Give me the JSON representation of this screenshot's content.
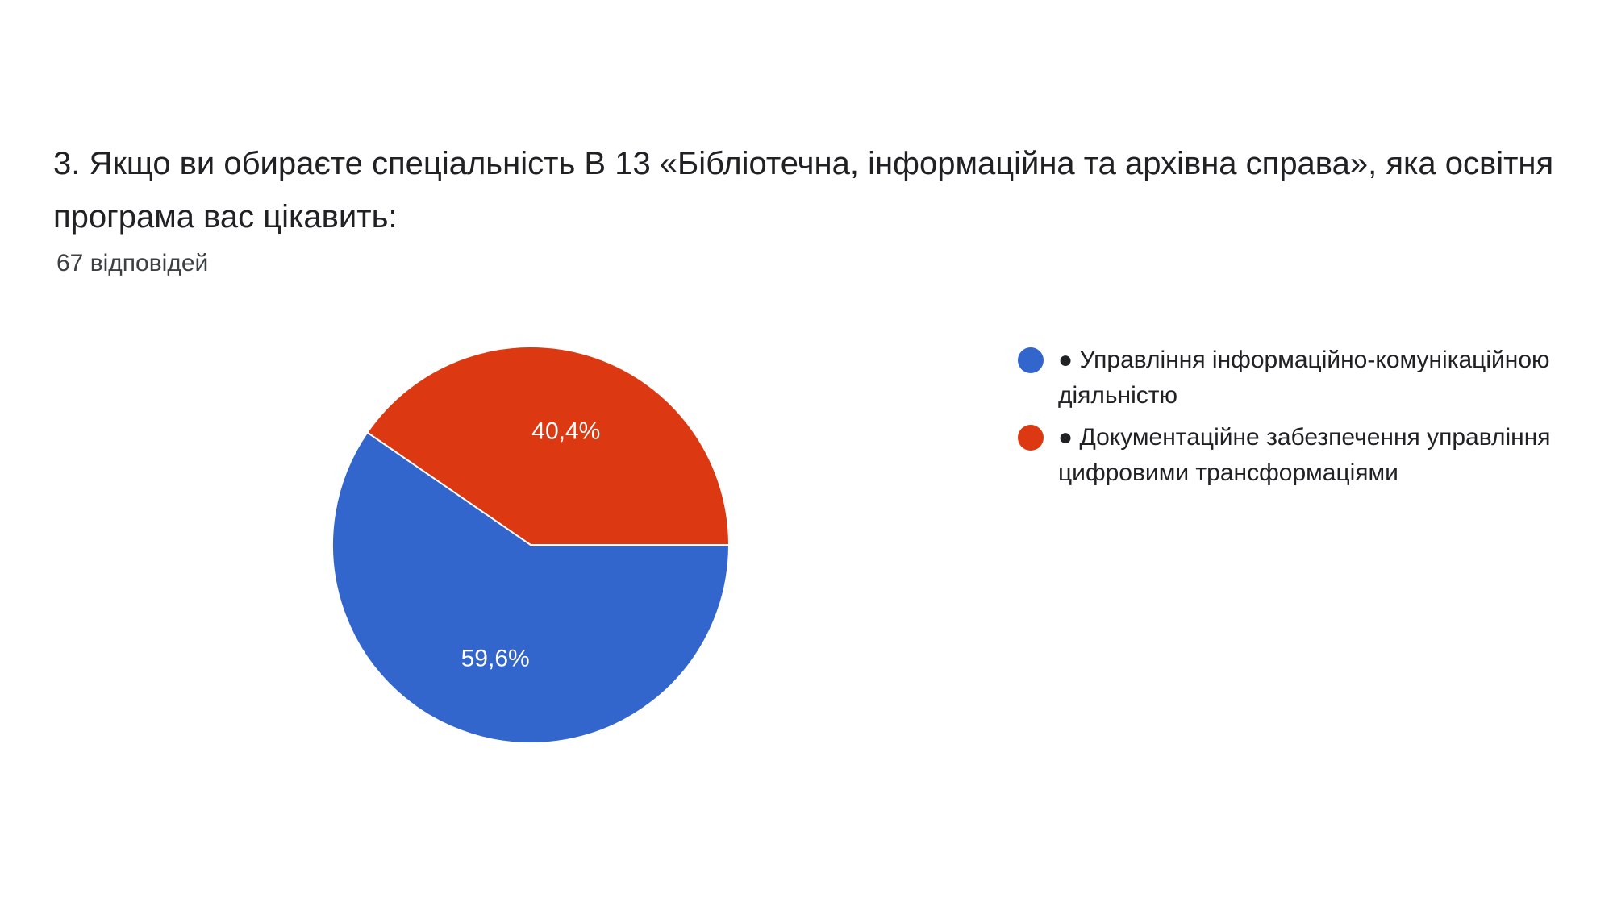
{
  "question": {
    "title": "3. Якщо ви обираєте спеціальність В 13 «Бібліотечна, інформаційна та архівна справа», яка освітня програма вас цікавить:",
    "response_count": "67 відповідей"
  },
  "colors": {
    "series_1": "#3366CC",
    "series_2": "#DC3912",
    "background": "#FFFFFF"
  },
  "chart_data": {
    "type": "pie",
    "title": "3. Якщо ви обираєте спеціальність В 13 «Бібліотечна, інформаційна та архівна справа», яка освітня програма вас цікавить:",
    "slices": [
      {
        "label": "● Управління інформаційно-комунікаційною діяльністю",
        "value": 59.6,
        "value_label": "59,6%",
        "color": "#3366CC"
      },
      {
        "label": "● Документаційне забезпечення управління цифровими трансформаціями",
        "value": 40.4,
        "value_label": "40,4%",
        "color": "#DC3912"
      }
    ],
    "legend": "right"
  }
}
